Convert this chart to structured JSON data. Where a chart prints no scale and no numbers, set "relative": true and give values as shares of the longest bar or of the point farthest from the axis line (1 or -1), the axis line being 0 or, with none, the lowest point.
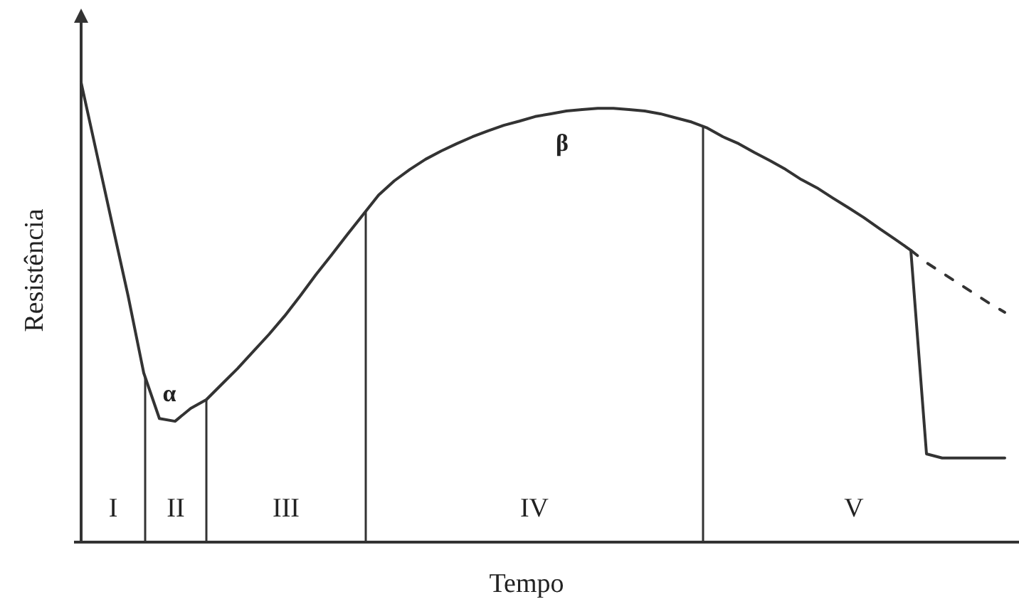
{
  "chart_data": {
    "type": "line",
    "relative": true,
    "xlabel": "Tempo",
    "ylabel": "Resistência",
    "categories": [
      null,
      null,
      null,
      null,
      null,
      null,
      null,
      null,
      null,
      null,
      null,
      null,
      null,
      null,
      null,
      null,
      null,
      null,
      null,
      null,
      null,
      null,
      null,
      null,
      null,
      null,
      null,
      null,
      null,
      null,
      null,
      null,
      null,
      null,
      null,
      null,
      null,
      null,
      null,
      null,
      null,
      null,
      null,
      null,
      null,
      null,
      null,
      null,
      null,
      null,
      null,
      null,
      null,
      null,
      null,
      null,
      null,
      null,
      null,
      null
    ],
    "series": [
      {
        "color": "#333333",
        "line_style": "solid",
        "values": [
          1.0,
          0.845,
          0.69,
          0.536,
          0.368,
          0.269,
          0.263,
          0.291,
          0.31,
          0.344,
          0.378,
          0.415,
          0.452,
          0.492,
          0.536,
          0.582,
          0.625,
          0.669,
          0.712,
          0.755,
          0.786,
          0.811,
          0.833,
          0.851,
          0.867,
          0.882,
          0.895,
          0.907,
          0.916,
          0.926,
          0.932,
          0.938,
          0.941,
          0.944,
          0.944,
          0.941,
          0.938,
          0.932,
          0.923,
          0.914,
          0.901,
          0.882,
          0.867,
          0.848,
          0.83,
          0.811,
          0.789,
          0.771,
          0.749,
          0.728,
          0.706,
          0.682,
          0.659,
          0.635,
          0.192,
          0.183,
          0.183,
          0.183,
          0.183,
          0.183
        ]
      },
      {
        "color": "#333333",
        "line_style": "dashed",
        "values": [
          null,
          null,
          null,
          null,
          null,
          null,
          null,
          null,
          null,
          null,
          null,
          null,
          null,
          null,
          null,
          null,
          null,
          null,
          null,
          null,
          null,
          null,
          null,
          null,
          null,
          null,
          null,
          null,
          null,
          null,
          null,
          null,
          null,
          null,
          null,
          null,
          null,
          null,
          null,
          null,
          null,
          null,
          null,
          null,
          null,
          null,
          null,
          null,
          null,
          null,
          null,
          null,
          null,
          0.635,
          0.608,
          0.586,
          0.564,
          0.542,
          0.52,
          0.5
        ]
      }
    ],
    "annotations": [
      "I",
      "II",
      "III",
      "IV",
      "V",
      "α",
      "β"
    ]
  }
}
